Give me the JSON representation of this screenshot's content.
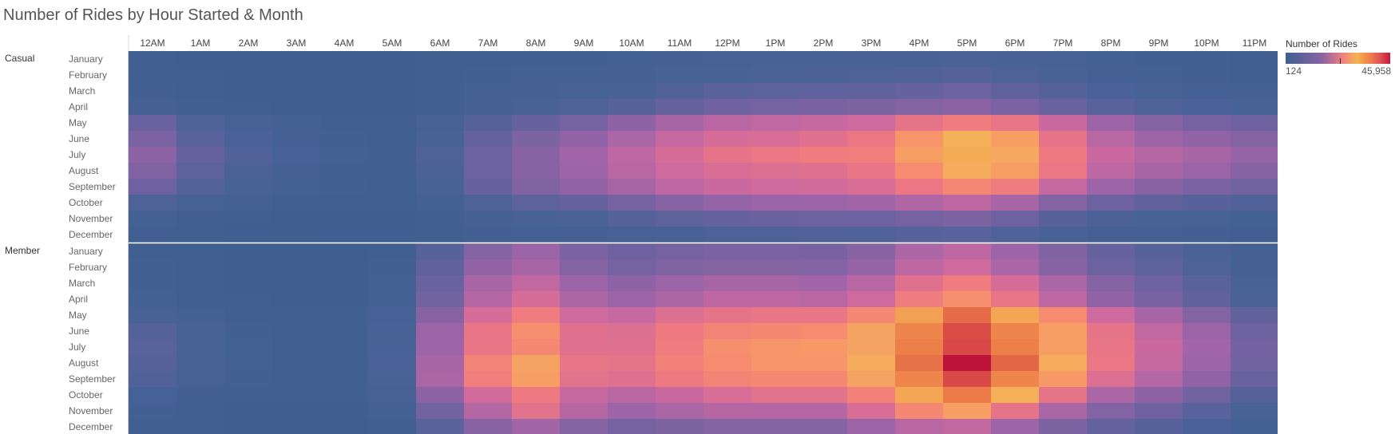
{
  "title": "Number of Rides by Hour Started & Month",
  "legend": {
    "title": "Number of Rides",
    "min_label": "124",
    "max_label": "45,958",
    "min": 124,
    "max": 45958
  },
  "chart_data": {
    "type": "heatmap",
    "title": "Number of Rides by Hour Started & Month",
    "hours": [
      "12AM",
      "1AM",
      "2AM",
      "3AM",
      "4AM",
      "5AM",
      "6AM",
      "7AM",
      "8AM",
      "9AM",
      "10AM",
      "11AM",
      "12PM",
      "1PM",
      "2PM",
      "3PM",
      "4PM",
      "5PM",
      "6PM",
      "7PM",
      "8PM",
      "9PM",
      "10PM",
      "11PM"
    ],
    "months": [
      "January",
      "February",
      "March",
      "April",
      "May",
      "June",
      "July",
      "August",
      "September",
      "October",
      "November",
      "December"
    ],
    "color_range": [
      124,
      45958
    ],
    "groups": [
      {
        "name": "Casual",
        "values": [
          [
            700,
            450,
            300,
            200,
            150,
            200,
            500,
            900,
            1200,
            1400,
            1700,
            2200,
            2600,
            2800,
            2900,
            3000,
            3200,
            3500,
            3000,
            2400,
            1800,
            1400,
            1200,
            900
          ],
          [
            800,
            500,
            320,
            220,
            160,
            220,
            600,
            1100,
            1500,
            1800,
            2200,
            2800,
            3300,
            3500,
            3600,
            3800,
            4200,
            4600,
            3800,
            3000,
            2200,
            1700,
            1400,
            1000
          ],
          [
            1200,
            700,
            450,
            300,
            200,
            250,
            800,
            1500,
            2200,
            2600,
            3200,
            4200,
            5200,
            5600,
            5800,
            6000,
            6600,
            7200,
            6000,
            4600,
            3400,
            2600,
            2200,
            1700
          ],
          [
            2000,
            1100,
            700,
            450,
            300,
            350,
            1000,
            2000,
            3000,
            3800,
            5000,
            6500,
            7800,
            8400,
            8800,
            9200,
            10000,
            10800,
            9000,
            7000,
            5200,
            4000,
            3400,
            2800
          ],
          [
            7000,
            4000,
            2600,
            1600,
            1000,
            800,
            2400,
            4600,
            6800,
            8400,
            11000,
            14000,
            16000,
            16800,
            17500,
            18500,
            22000,
            24000,
            22500,
            18000,
            13000,
            10000,
            8500,
            7500
          ],
          [
            9000,
            5200,
            3400,
            2000,
            1300,
            1000,
            3200,
            6200,
            9200,
            11500,
            14500,
            17500,
            19500,
            20000,
            21000,
            23000,
            28000,
            31000,
            29000,
            22000,
            16000,
            13000,
            11500,
            10000
          ],
          [
            11000,
            6500,
            4200,
            2500,
            1600,
            1200,
            3800,
            7200,
            10500,
            13500,
            16500,
            19500,
            22000,
            23000,
            24000,
            24500,
            29000,
            32000,
            30000,
            23500,
            18000,
            15500,
            14000,
            12000
          ],
          [
            9500,
            5600,
            3600,
            2200,
            1400,
            1200,
            3600,
            7200,
            10500,
            13000,
            16000,
            18500,
            20000,
            20500,
            21000,
            22500,
            27000,
            30500,
            29000,
            23000,
            16500,
            14000,
            12500,
            10500
          ],
          [
            7500,
            4400,
            2800,
            1700,
            1100,
            1000,
            3200,
            6800,
            9500,
            11500,
            14000,
            16500,
            18000,
            18500,
            19000,
            20000,
            23000,
            26000,
            24000,
            17500,
            13000,
            10500,
            9000,
            8000
          ],
          [
            4000,
            2400,
            1500,
            900,
            600,
            500,
            1800,
            4000,
            5600,
            6600,
            8500,
            10500,
            12000,
            12500,
            13000,
            13500,
            15000,
            16500,
            14000,
            10000,
            7500,
            6000,
            5000,
            4200
          ],
          [
            1600,
            950,
            600,
            380,
            260,
            300,
            1000,
            2200,
            3000,
            3500,
            4500,
            5600,
            6500,
            7000,
            7300,
            7500,
            8500,
            9200,
            7500,
            5000,
            3600,
            2800,
            2400,
            1800
          ],
          [
            900,
            550,
            350,
            230,
            170,
            200,
            600,
            1300,
            1800,
            2100,
            2600,
            3200,
            3800,
            4000,
            4100,
            4200,
            4700,
            5100,
            4200,
            3000,
            2200,
            1700,
            1400,
            1000
          ]
        ]
      },
      {
        "name": "Member",
        "values": [
          [
            900,
            500,
            300,
            200,
            250,
            1000,
            5000,
            10000,
            12500,
            9000,
            7500,
            8500,
            9000,
            9000,
            8800,
            10500,
            14500,
            16500,
            13000,
            9500,
            6500,
            5000,
            3500,
            2000
          ],
          [
            1100,
            600,
            350,
            250,
            300,
            1200,
            6000,
            11500,
            14000,
            10000,
            8500,
            9500,
            10000,
            10000,
            9800,
            12000,
            16500,
            18500,
            14500,
            10500,
            7200,
            5500,
            3800,
            2200
          ],
          [
            1400,
            800,
            450,
            300,
            350,
            1500,
            7000,
            14000,
            17000,
            12500,
            11000,
            12500,
            14000,
            14000,
            13500,
            16000,
            21000,
            24000,
            19500,
            14500,
            10000,
            7600,
            5200,
            3000
          ],
          [
            1800,
            1000,
            550,
            380,
            420,
            1800,
            8000,
            15500,
            19500,
            14500,
            13000,
            14500,
            16500,
            16500,
            16000,
            18500,
            24000,
            27500,
            22500,
            16500,
            11500,
            8700,
            6000,
            3500
          ],
          [
            3200,
            1800,
            1000,
            600,
            600,
            2500,
            10500,
            19500,
            24000,
            18500,
            17500,
            20500,
            22000,
            22500,
            22500,
            26500,
            33000,
            38000,
            32500,
            27000,
            18500,
            14000,
            10000,
            6000
          ],
          [
            4500,
            2600,
            1400,
            850,
            750,
            3000,
            12500,
            22500,
            27500,
            21000,
            20500,
            23500,
            25500,
            26500,
            27000,
            29500,
            35500,
            41000,
            35500,
            29000,
            22000,
            17000,
            12500,
            7500
          ],
          [
            5200,
            3000,
            1600,
            950,
            850,
            3200,
            13000,
            22500,
            26500,
            21000,
            21000,
            24000,
            27500,
            28000,
            28500,
            29500,
            36000,
            41500,
            36000,
            29000,
            22500,
            18000,
            13500,
            8200
          ],
          [
            5000,
            2900,
            1600,
            950,
            850,
            3400,
            14000,
            25500,
            29500,
            22500,
            22000,
            25000,
            27000,
            28000,
            28000,
            30500,
            37500,
            45958,
            38500,
            30500,
            23000,
            17500,
            13000,
            8000
          ],
          [
            4200,
            2400,
            1300,
            800,
            750,
            3200,
            14500,
            24500,
            29000,
            21500,
            21000,
            23500,
            25500,
            26500,
            26500,
            29500,
            35500,
            41500,
            35500,
            28500,
            20500,
            15500,
            11500,
            7000
          ],
          [
            2500,
            1400,
            800,
            500,
            500,
            2400,
            11000,
            19000,
            23500,
            17500,
            16000,
            18000,
            20000,
            21500,
            21500,
            25000,
            32500,
            36500,
            31000,
            22000,
            14500,
            11000,
            8000,
            4500
          ],
          [
            1400,
            800,
            450,
            300,
            350,
            1600,
            8000,
            15500,
            21500,
            15500,
            13000,
            14500,
            15500,
            15500,
            15500,
            20000,
            26500,
            29000,
            22000,
            14500,
            9800,
            7500,
            5200,
            2800
          ],
          [
            900,
            500,
            300,
            200,
            250,
            1000,
            5200,
            10500,
            13500,
            10000,
            8500,
            9200,
            10000,
            10000,
            10000,
            12500,
            16000,
            17000,
            13000,
            9200,
            6300,
            4900,
            3400,
            1900
          ]
        ]
      }
    ]
  }
}
